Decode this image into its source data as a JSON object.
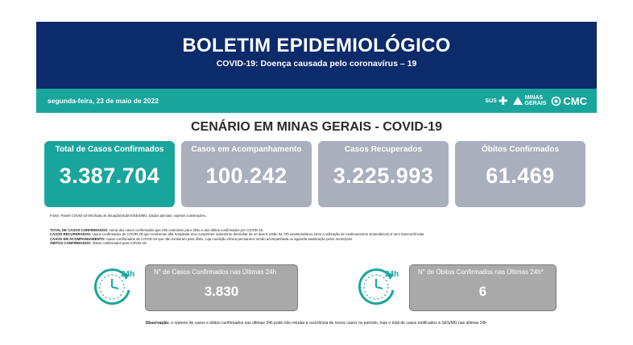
{
  "header": {
    "title": "BOLETIM EPIDEMIOLÓGICO",
    "subtitle": "COVID-19: Doença causada pelo coronavírus – 19"
  },
  "datebar": {
    "date": "segunda-feira, 23 de maio de 2022",
    "logos": {
      "sus": "SUS",
      "minas_top": "MINAS",
      "minas_bottom": "GERAIS",
      "cmc": "CMC"
    }
  },
  "section_title": "CENÁRIO EM MINAS GERAIS - COVID-19",
  "cards": [
    {
      "label": "Total de Casos Confirmados",
      "value": "3.387.704",
      "color": "#1aa59c"
    },
    {
      "label": "Casos em Acompanhamento",
      "value": "100.242",
      "color": "#a9afbd"
    },
    {
      "label": "Casos Recuperados",
      "value": "3.225.993",
      "color": "#a9afbd"
    },
    {
      "label": "Óbitos Confirmados",
      "value": "61.469",
      "color": "#a9afbd"
    }
  ],
  "source": "Fonte: Painel COVID-19 MG/Sala de Situação/SubVS/SES/MG. Dados parciais, sujeitos a alterações.",
  "definitions": [
    {
      "term": "TOTAL DE CASOS CONFIRMADOS:",
      "text": " soma dos casos confirmados que não evoluíram para óbito e dos óbitos confirmados por COVID-19."
    },
    {
      "term": "CASOS RECUPERADOS:",
      "text": " casos confirmados de COVID-19 que receberam alta hospitalar e/ou cumpriram isolamento domiciliar de 10 dias E estão há 72h assintomáticos (sem a utilização de medicamentos sintomáticos) E sem intercorrências."
    },
    {
      "term": "CASOS EM ACOMPANHAMENTO:",
      "text": " casos confirmados de COVID-19 que não evoluíram para óbito, cuja condição clínica permanece sendo acompanhada ou aguarda atualização pelos municípios."
    },
    {
      "term": "ÓBITOS CONFIRMADOS:",
      "text": " óbitos confirmados para COVID-19."
    }
  ],
  "last24": {
    "clock_text": "24h",
    "cases_label": "N° de Casos Confirmados nas Últimas 24h",
    "cases_value": "3.830",
    "deaths_label": "N° de Óbitos Confirmados nas Últimas 24h*",
    "deaths_value": "6"
  },
  "observation": {
    "term": "Observação:",
    "text": " o número de casos e óbitos confirmados nas últimas 24h pode não retratar a ocorrência de novos casos no período, mas o total de casos notificados à SES/MG nas últimas 24h."
  }
}
